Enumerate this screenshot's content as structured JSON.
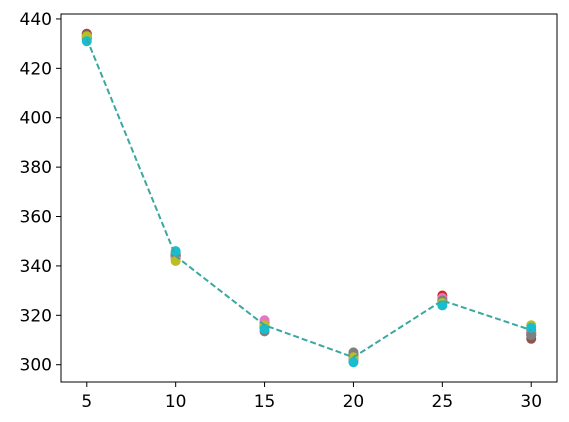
{
  "chart_data": {
    "type": "scatter",
    "x": [
      5,
      10,
      15,
      20,
      25,
      30
    ],
    "xlim": [
      3.55,
      31.45
    ],
    "xticks": [
      5,
      10,
      15,
      20,
      25,
      30
    ],
    "ylim": [
      293,
      442
    ],
    "yticks": [
      300,
      320,
      340,
      360,
      380,
      400,
      420,
      440
    ],
    "grid": false,
    "series": [
      {
        "color": "#1f77b4",
        "style": "markers",
        "values": [
          433,
          344,
          315,
          303,
          326,
          313
        ]
      },
      {
        "color": "#ff7f0e",
        "style": "markers",
        "values": [
          433.5,
          345,
          316,
          302,
          325,
          312
        ]
      },
      {
        "color": "#2ca02c",
        "style": "markers",
        "values": [
          432,
          343,
          315,
          303,
          327,
          314
        ]
      },
      {
        "color": "#d62728",
        "style": "markers",
        "values": [
          434,
          344,
          316,
          304,
          328,
          313
        ]
      },
      {
        "color": "#9467bd",
        "style": "markers",
        "values": [
          432.5,
          345,
          317,
          302,
          326,
          312
        ]
      },
      {
        "color": "#8c564b",
        "style": "markers",
        "values": [
          434,
          344,
          315,
          303,
          325,
          310.5
        ]
      },
      {
        "color": "#e377c2",
        "style": "markers",
        "values": [
          433,
          343,
          318,
          302,
          327,
          313
        ]
      },
      {
        "color": "#7f7f7f",
        "style": "markers",
        "values": [
          432,
          345,
          313.5,
          305,
          326,
          312
        ]
      },
      {
        "color": "#bcbd22",
        "style": "markers",
        "values": [
          433,
          342,
          316,
          303,
          325,
          316
        ]
      },
      {
        "color": "#17becf",
        "style": "markers",
        "values": [
          431,
          346,
          314.5,
          301,
          324,
          315
        ]
      },
      {
        "color": "#3aa8a0",
        "style": "dashed",
        "values": [
          432,
          344,
          316,
          303,
          326,
          314
        ]
      }
    ]
  }
}
